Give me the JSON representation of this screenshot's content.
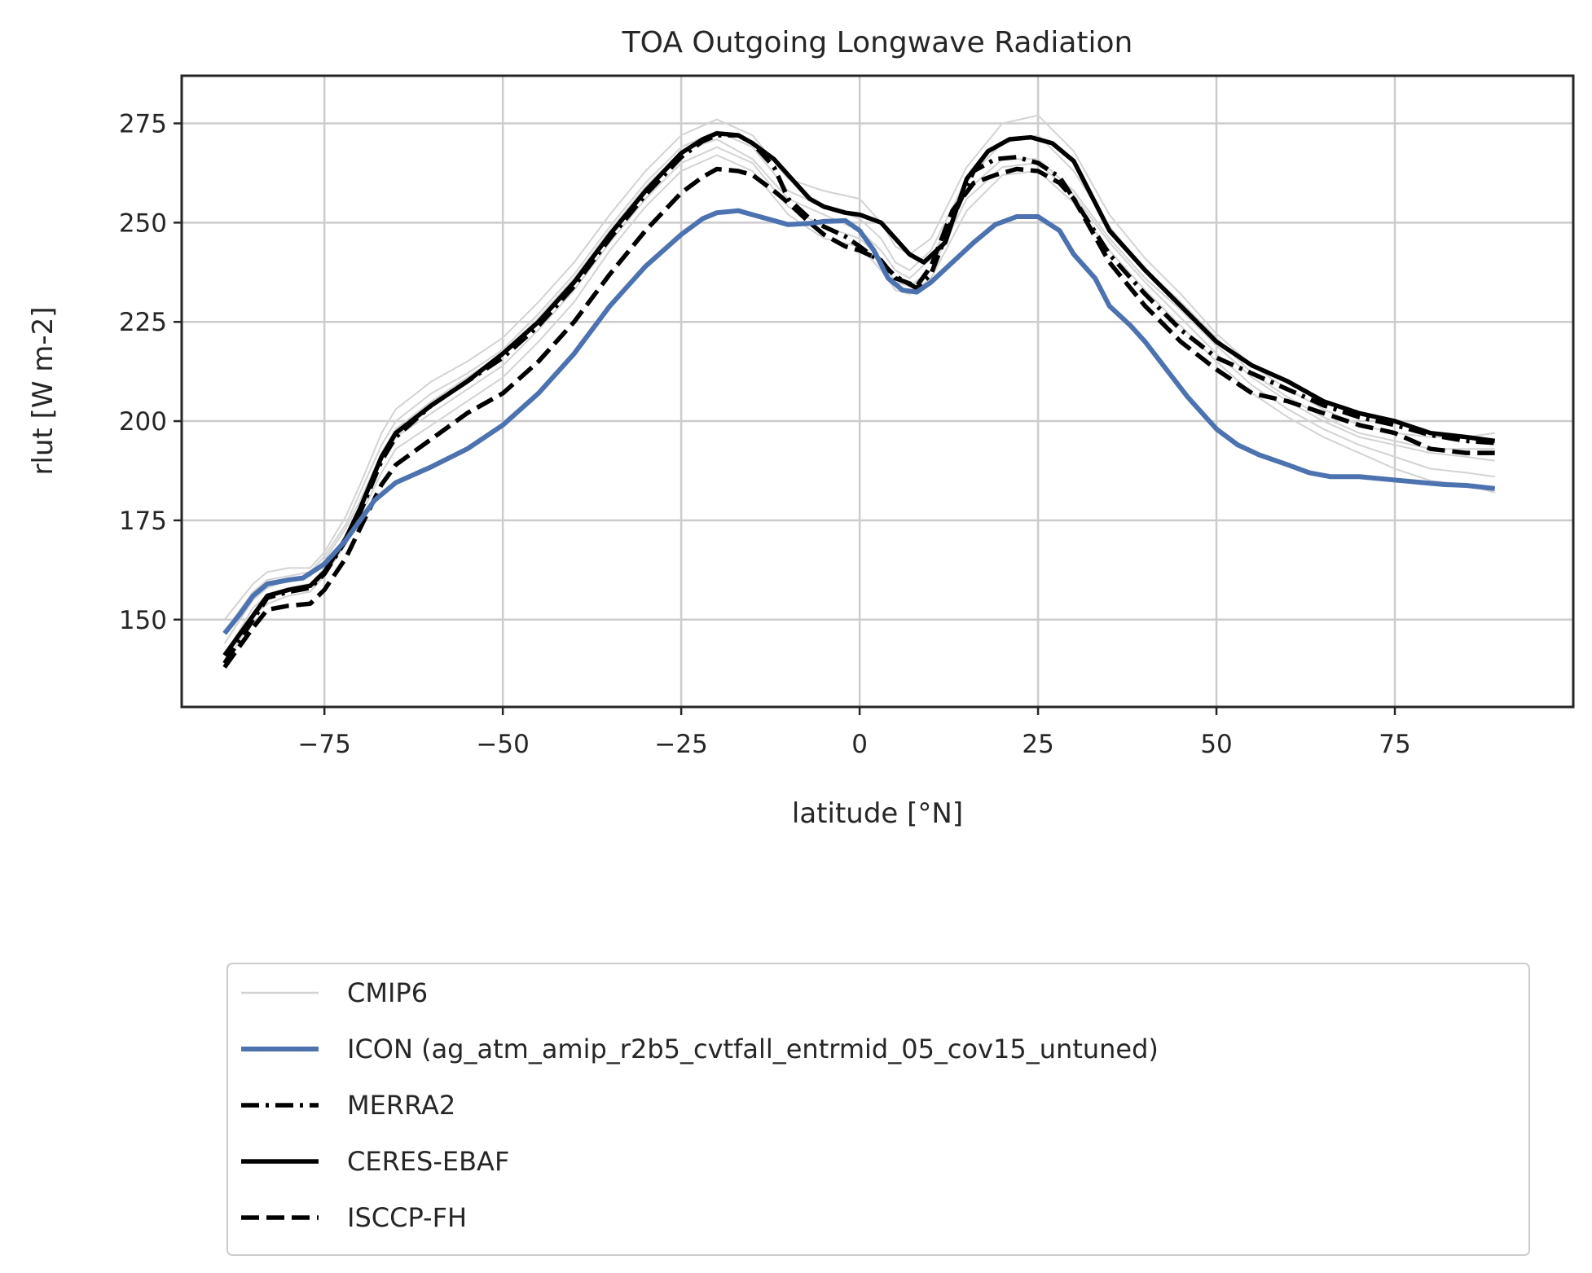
{
  "chart_data": {
    "type": "line",
    "title": "TOA Outgoing Longwave Radiation",
    "xlabel": "latitude [°N]",
    "ylabel": "rlut [W m-2]",
    "xlim": [
      -95,
      100
    ],
    "ylim": [
      128,
      287
    ],
    "xticks": [
      -75,
      -50,
      -25,
      0,
      25,
      50,
      75
    ],
    "xtick_labels": [
      "−75",
      "−50",
      "−25",
      "0",
      "25",
      "50",
      "75"
    ],
    "yticks": [
      150,
      175,
      200,
      225,
      250,
      275
    ],
    "ytick_labels": [
      "150",
      "175",
      "200",
      "225",
      "250",
      "275"
    ],
    "grid": true,
    "legend_position": "below plot",
    "series": [
      {
        "name": "CMIP6",
        "color": "#d3d3d3",
        "style": "solid",
        "x": [
          -89,
          -85,
          -83,
          -80,
          -77,
          -75,
          -72,
          -70,
          -67,
          -65,
          -60,
          -55,
          -50,
          -45,
          -40,
          -35,
          -30,
          -25,
          -20,
          -15,
          -10,
          -5,
          0,
          3,
          5,
          7,
          10,
          15,
          20,
          25,
          30,
          35,
          40,
          45,
          50,
          55,
          60,
          65,
          70,
          75,
          80,
          85,
          89
        ],
        "members": [
          [
            144,
            155,
            158,
            160,
            161,
            165,
            173,
            180,
            192,
            198,
            205,
            211,
            217,
            226,
            236,
            248,
            259,
            268,
            271,
            266,
            256,
            252,
            248,
            243,
            238,
            236,
            241,
            258,
            266,
            266,
            258,
            246,
            236,
            228,
            219,
            211,
            205,
            200,
            196,
            194,
            192,
            191,
            190
          ],
          [
            150,
            159,
            162,
            163,
            163,
            167,
            176,
            184,
            197,
            203,
            210,
            215,
            221,
            230,
            240,
            252,
            263,
            272,
            276,
            272,
            261,
            258,
            256,
            250,
            244,
            242,
            246,
            264,
            275,
            277,
            268,
            252,
            241,
            232,
            222,
            214,
            208,
            203,
            199,
            197,
            196,
            196,
            197
          ],
          [
            138,
            151,
            154,
            156,
            157,
            161,
            169,
            176,
            187,
            193,
            199,
            205,
            211,
            220,
            230,
            243,
            254,
            263,
            267,
            263,
            252,
            246,
            244,
            238,
            233,
            232,
            236,
            253,
            262,
            263,
            255,
            243,
            233,
            224,
            215,
            207,
            201,
            196,
            192,
            188,
            185,
            184,
            182
          ],
          [
            147,
            157,
            160,
            161,
            162,
            166,
            174,
            182,
            194,
            200,
            207,
            212,
            218,
            227,
            237,
            249,
            260,
            269,
            273,
            269,
            258,
            254,
            251,
            246,
            240,
            238,
            243,
            261,
            270,
            272,
            263,
            249,
            238,
            230,
            221,
            212,
            206,
            201,
            197,
            195,
            193,
            193,
            193
          ],
          [
            141,
            153,
            156,
            158,
            159,
            163,
            171,
            178,
            190,
            196,
            202,
            208,
            214,
            223,
            233,
            245,
            256,
            265,
            269,
            265,
            254,
            249,
            246,
            241,
            235,
            234,
            238,
            256,
            264,
            265,
            257,
            245,
            235,
            226,
            217,
            209,
            203,
            198,
            194,
            191,
            188,
            187,
            186
          ]
        ]
      },
      {
        "name": "ICON (ag_atm_amip_r2b5_cvtfall_entrmid_05_cov15_untuned)",
        "color": "#4c72b0",
        "style": "solid",
        "x": [
          -89,
          -87,
          -85,
          -83,
          -80,
          -78,
          -75,
          -72,
          -70,
          -68,
          -65,
          -60,
          -55,
          -50,
          -45,
          -40,
          -35,
          -30,
          -25,
          -22,
          -20,
          -17,
          -15,
          -12,
          -10,
          -7,
          -5,
          -2,
          0,
          2,
          4,
          6,
          8,
          10,
          13,
          16,
          19,
          22,
          25,
          28,
          30,
          33,
          35,
          38,
          40,
          43,
          46,
          50,
          53,
          56,
          60,
          63,
          66,
          70,
          73,
          76,
          79,
          82,
          85,
          89
        ],
        "y": [
          146.5,
          151,
          156,
          159,
          160,
          160.5,
          164,
          170,
          175,
          180,
          184.5,
          188.5,
          193,
          199,
          207,
          217,
          229,
          239,
          247,
          251,
          252.5,
          253,
          252,
          250.5,
          249.5,
          249.8,
          250.3,
          250.5,
          248,
          243,
          236,
          233,
          232.5,
          235,
          240,
          245,
          249.5,
          251.5,
          251.5,
          248,
          242,
          236,
          229,
          224,
          220,
          213,
          206,
          198,
          194,
          191.5,
          189,
          187,
          186,
          186,
          185.5,
          185,
          184.5,
          184,
          183.8,
          183
        ]
      },
      {
        "name": "MERRA2",
        "color": "#000000",
        "style": "dashdot",
        "x": [
          -89,
          -85,
          -83,
          -80,
          -77,
          -75,
          -72,
          -70,
          -67,
          -65,
          -60,
          -55,
          -50,
          -45,
          -40,
          -35,
          -30,
          -25,
          -22,
          -20,
          -17,
          -15,
          -12,
          -10,
          -7,
          -5,
          -2,
          0,
          3,
          5,
          8,
          10,
          13,
          16,
          19,
          22,
          25,
          28,
          30,
          35,
          40,
          45,
          50,
          55,
          60,
          65,
          70,
          75,
          80,
          85,
          89
        ],
        "y": [
          139,
          150,
          155.5,
          157,
          158,
          161.5,
          170,
          177,
          190,
          196,
          204,
          210,
          216,
          224,
          234,
          246,
          257,
          266.5,
          270.5,
          272,
          272,
          270,
          264,
          256,
          251,
          249,
          246.5,
          244,
          240,
          236.5,
          233.5,
          237,
          251,
          263,
          266,
          266.5,
          265,
          261.5,
          256,
          242,
          232,
          223,
          216,
          212,
          208,
          204,
          201,
          199,
          196.5,
          195,
          194.5
        ]
      },
      {
        "name": "CERES-EBAF",
        "color": "#000000",
        "style": "solid",
        "x": [
          -89,
          -85,
          -83,
          -80,
          -77,
          -75,
          -72,
          -70,
          -67,
          -65,
          -60,
          -55,
          -50,
          -45,
          -40,
          -35,
          -30,
          -25,
          -22,
          -20,
          -17,
          -15,
          -12,
          -10,
          -7,
          -5,
          -2,
          0,
          3,
          5,
          7,
          9,
          12,
          15,
          18,
          21,
          24,
          27,
          30,
          35,
          40,
          45,
          50,
          55,
          60,
          65,
          70,
          75,
          80,
          85,
          89
        ],
        "y": [
          141,
          151,
          156,
          157.5,
          158.5,
          162,
          170.5,
          178,
          191,
          197,
          204,
          210,
          217,
          225,
          235,
          247,
          258,
          267.5,
          271,
          272.5,
          272,
          270,
          266,
          262,
          256,
          254,
          252.5,
          252,
          250,
          246,
          242,
          240,
          245,
          261,
          268,
          271,
          271.5,
          270,
          265.5,
          248,
          238,
          229,
          220,
          214,
          210,
          205,
          202,
          200,
          197,
          196,
          195
        ]
      },
      {
        "name": "ISCCP-FH",
        "color": "#000000",
        "style": "dashed",
        "x": [
          -89,
          -85,
          -83,
          -80,
          -77,
          -75,
          -72,
          -70,
          -67,
          -65,
          -60,
          -55,
          -50,
          -45,
          -40,
          -35,
          -30,
          -25,
          -22,
          -20,
          -17,
          -15,
          -12,
          -10,
          -7,
          -5,
          -2,
          0,
          3,
          5,
          8,
          10,
          13,
          16,
          19,
          22,
          25,
          28,
          30,
          35,
          40,
          45,
          50,
          55,
          60,
          65,
          70,
          75,
          80,
          85,
          89
        ],
        "y": [
          138,
          148,
          152.5,
          153.5,
          154,
          157.5,
          165.5,
          173,
          184,
          189,
          195.5,
          202,
          207,
          215,
          225,
          237,
          248,
          257.5,
          261.5,
          263.5,
          263,
          262,
          258,
          255,
          250,
          247,
          244,
          243,
          240.5,
          236,
          234,
          239,
          253,
          260,
          262,
          263.5,
          263,
          260,
          256,
          240,
          229,
          220,
          213,
          207,
          205,
          202,
          199,
          197,
          193,
          192,
          192
        ]
      }
    ]
  }
}
